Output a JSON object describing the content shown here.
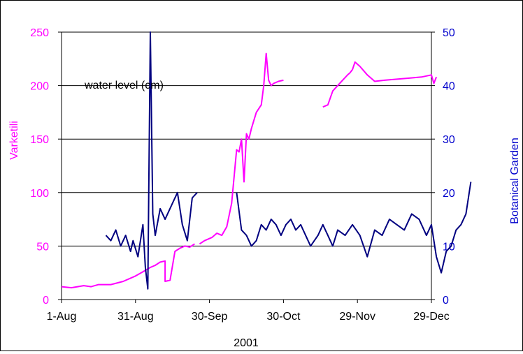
{
  "chart_data": {
    "type": "line",
    "annotation": "water level (cm)",
    "xlabel": "2001",
    "x_ticks": [
      "1-Aug",
      "31-Aug",
      "30-Sep",
      "30-Oct",
      "29-Nov",
      "29-Dec"
    ],
    "xlim": [
      "1-Aug",
      "15-Jan"
    ],
    "grid": true,
    "left_axis": {
      "label": "Varketili",
      "ylim": [
        0,
        250
      ],
      "ticks": [
        "0",
        "50",
        "100",
        "150",
        "200",
        "250"
      ],
      "color": "#ff00ff"
    },
    "right_axis": {
      "label": "Botanical Garden",
      "ylim": [
        0,
        50
      ],
      "ticks": [
        "0",
        "10",
        "20",
        "30",
        "40",
        "50"
      ],
      "color": "#0000cc"
    },
    "series": [
      {
        "name": "Varketili",
        "axis": "left",
        "color": "#ff00ff",
        "x": [
          "2001-08-01",
          "2001-08-05",
          "2001-08-10",
          "2001-08-13",
          "2001-08-16",
          "2001-08-21",
          "2001-08-26",
          "2001-08-31",
          "2001-09-03",
          "2001-09-06",
          "2001-09-08",
          "2001-09-10",
          "2001-09-12",
          "2001-09-12",
          "2001-09-14",
          "2001-09-16",
          "2001-09-18",
          "2001-09-20",
          "2001-09-22",
          "2001-09-24",
          null,
          "2001-09-26",
          "2001-09-28",
          "2001-10-01",
          "2001-10-03",
          "2001-10-05",
          "2001-10-07",
          "2001-10-09",
          "2001-10-11",
          "2001-10-12",
          "2001-10-13",
          "2001-10-14",
          "2001-10-15",
          "2001-10-16",
          "2001-10-17",
          "2001-10-19",
          "2001-10-21",
          "2001-10-22",
          "2001-10-23",
          "2001-10-24",
          "2001-10-25",
          "2001-10-26",
          "2001-10-28",
          "2001-10-30",
          null,
          "2001-11-15",
          "2001-11-17",
          "2001-11-19",
          "2001-11-21",
          "2001-11-23",
          "2001-11-25",
          "2001-11-26",
          "2001-11-27",
          "2001-11-28",
          "2001-11-30",
          "2001-12-03",
          "2001-12-06",
          "2001-12-10",
          "2001-12-15",
          "2001-12-20",
          "2001-12-25",
          "2001-12-29",
          "2001-12-30",
          "2001-12-31"
        ],
        "y": [
          12,
          11,
          13,
          12,
          14,
          14,
          17,
          22,
          26,
          30,
          32,
          35,
          36,
          17,
          18,
          45,
          48,
          50,
          49,
          52,
          null,
          52,
          55,
          58,
          62,
          60,
          68,
          90,
          140,
          138,
          150,
          110,
          155,
          150,
          160,
          175,
          182,
          200,
          230,
          205,
          200,
          202,
          204,
          205,
          null,
          180,
          182,
          195,
          200,
          205,
          210,
          212,
          215,
          222,
          218,
          210,
          204,
          205,
          206,
          207,
          208,
          210,
          202,
          208
        ]
      },
      {
        "name": "Botanical Garden",
        "axis": "right",
        "color": "#000080",
        "x": [
          "2001-08-01",
          null,
          "2001-08-19",
          "2001-08-21",
          "2001-08-23",
          "2001-08-25",
          "2001-08-27",
          "2001-08-29",
          "2001-08-30",
          "2001-09-01",
          "2001-09-03",
          "2001-09-04",
          "2001-09-05",
          "2001-09-06",
          "2001-09-07",
          "2001-09-08",
          "2001-09-10",
          "2001-09-12",
          "2001-09-15",
          "2001-09-17",
          "2001-09-19",
          "2001-09-21",
          "2001-09-23",
          "2001-09-25",
          null,
          "2001-10-11",
          "2001-10-13",
          "2001-10-15",
          "2001-10-17",
          "2001-10-19",
          "2001-10-21",
          "2001-10-23",
          "2001-10-25",
          "2001-10-27",
          "2001-10-29",
          "2001-10-31",
          "2001-11-02",
          "2001-11-04",
          "2001-11-06",
          "2001-11-08",
          "2001-11-10",
          "2001-11-13",
          "2001-11-15",
          "2001-11-17",
          "2001-11-19",
          "2001-11-21",
          "2001-11-24",
          "2001-11-27",
          "2001-11-30",
          "2001-12-03",
          "2001-12-06",
          "2001-12-09",
          "2001-12-12",
          "2001-12-15",
          "2001-12-18",
          "2001-12-21",
          "2001-12-24",
          "2001-12-27",
          "2001-12-29",
          "2001-12-31",
          "2002-01-02",
          "2002-01-04",
          "2002-01-06",
          "2002-01-08",
          "2002-01-10",
          "2002-01-12",
          "2002-01-14"
        ],
        "y": [
          9,
          null,
          12,
          11,
          13,
          10,
          12,
          9,
          11,
          8,
          14,
          6,
          2,
          50,
          16,
          12,
          17,
          15,
          18,
          20,
          14,
          11,
          19,
          20,
          null,
          20,
          13,
          12,
          10,
          11,
          14,
          13,
          15,
          14,
          12,
          14,
          15,
          13,
          14,
          12,
          10,
          12,
          14,
          12,
          10,
          13,
          12,
          14,
          12,
          8,
          13,
          12,
          15,
          14,
          13,
          16,
          15,
          12,
          14,
          8,
          5,
          9,
          10,
          13,
          14,
          16,
          22
        ]
      }
    ]
  }
}
